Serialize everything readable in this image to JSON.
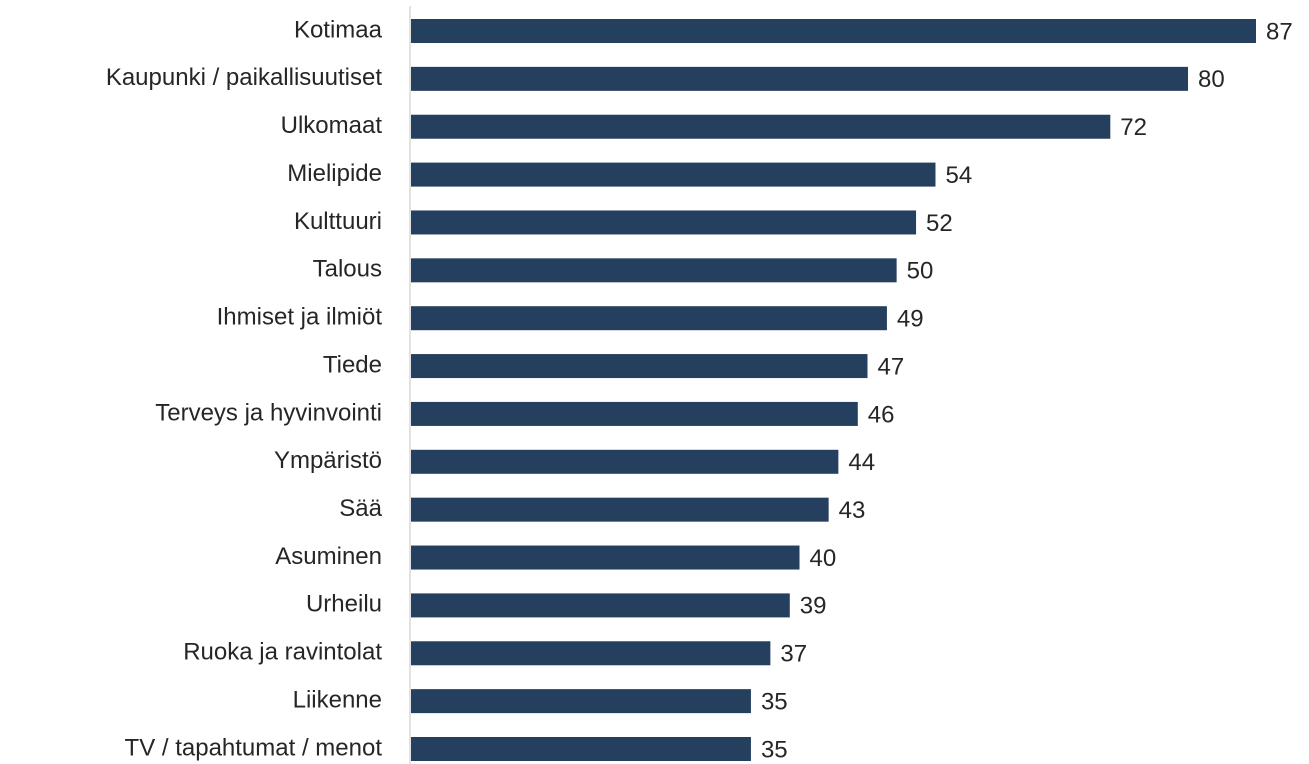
{
  "chart_data": {
    "type": "bar",
    "orientation": "horizontal",
    "categories": [
      "Kotimaa",
      "Kaupunki / paikallisuutiset",
      "Ulkomaat",
      "Mielipide",
      "Kulttuuri",
      "Talous",
      "Ihmiset ja ilmiöt",
      "Tiede",
      "Terveys ja hyvinvointi",
      "Ympäristö",
      "Sää",
      "Asuminen",
      "Urheilu",
      "Ruoka ja ravintolat",
      "Liikenne",
      "TV / tapahtumat / menot"
    ],
    "values": [
      87,
      80,
      72,
      54,
      52,
      50,
      49,
      47,
      46,
      44,
      43,
      40,
      39,
      37,
      35,
      35
    ],
    "color": "#253f5e"
  }
}
